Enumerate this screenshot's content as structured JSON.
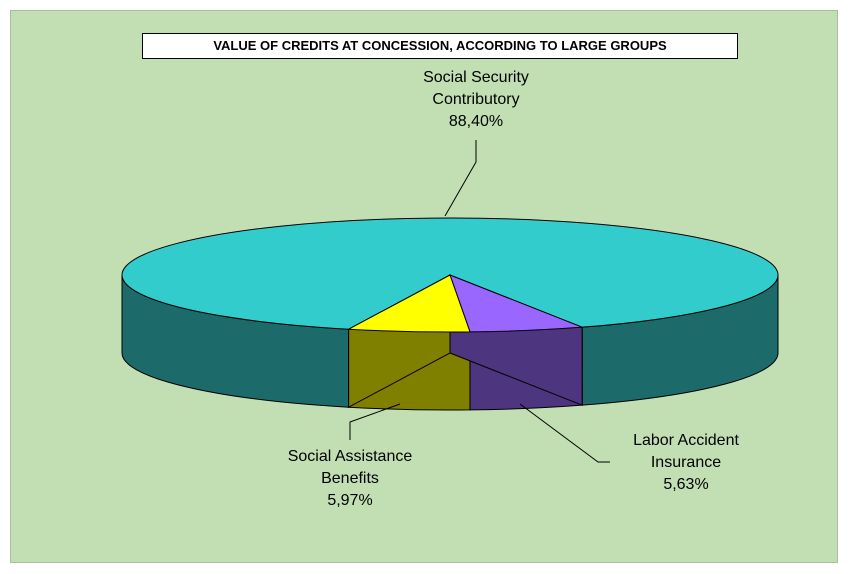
{
  "chart_data": {
    "type": "pie",
    "title": "VALUE OF CREDITS AT CONCESSION, ACCORDING TO LARGE GROUPS",
    "slices": [
      {
        "label_lines": [
          "Social Security",
          "Contributory"
        ],
        "value": 88.4,
        "display": "88,40%",
        "color": "#33cccc",
        "side_color": "#1d6a6a"
      },
      {
        "label_lines": [
          "Labor Accident",
          "Insurance"
        ],
        "value": 5.63,
        "display": "5,63%",
        "color": "#9966ff",
        "side_color": "#4e3580"
      },
      {
        "label_lines": [
          "Social Assistance",
          "Benefits"
        ],
        "value": 5.97,
        "display": "5,97%",
        "color": "#ffff00",
        "side_color": "#808000"
      }
    ],
    "background_color": "#c2dfb4",
    "legend": "none"
  }
}
